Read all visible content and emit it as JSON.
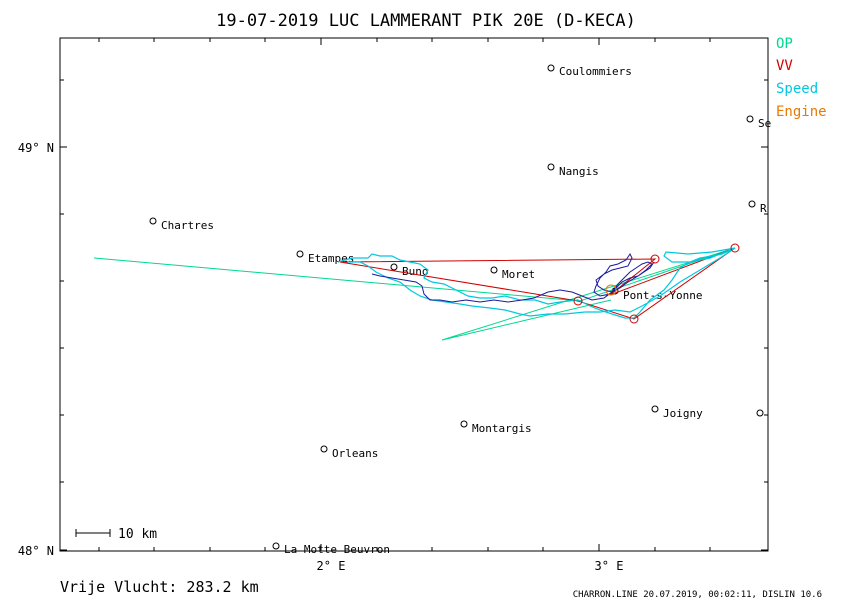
{
  "title": "19-07-2019   LUC LAMMERANT   PIK 20E (D-KECA)",
  "legend": [
    {
      "label": "OP",
      "color": "#00d890"
    },
    {
      "label": "VV",
      "color": "#d00000"
    },
    {
      "label": "Speed",
      "color": "#00c8e0"
    },
    {
      "label": "Engine",
      "color": "#e87a00"
    }
  ],
  "axes": {
    "lat_labels": [
      "49° N",
      "48° N"
    ],
    "lon_labels": [
      "2° E",
      "3° E"
    ]
  },
  "scale_bar": {
    "label": "10 km"
  },
  "footer": {
    "distance": "Vrije Vlucht:  283.2 km",
    "credit": "CHARRON.LINE 20.07.2019, 00:02:11, DISLIN 10.6"
  },
  "towns": [
    {
      "name": "Coulommiers"
    },
    {
      "name": "Nangis"
    },
    {
      "name": "Chartres"
    },
    {
      "name": "Etampes"
    },
    {
      "name": "Buno"
    },
    {
      "name": "Moret"
    },
    {
      "name": "Pont-s-Yonne"
    },
    {
      "name": "Joigny"
    },
    {
      "name": "Montargis"
    },
    {
      "name": "Orleans"
    },
    {
      "name": "La Motte Beuvron"
    },
    {
      "name": "Se"
    },
    {
      "name": "R"
    }
  ],
  "colors": {
    "frame": "#000000",
    "op_line": "#00d890",
    "vv_line": "#d00000",
    "speed_line": "#00c8e0",
    "engine": "#e87a00",
    "track": "#1a1aa0"
  }
}
